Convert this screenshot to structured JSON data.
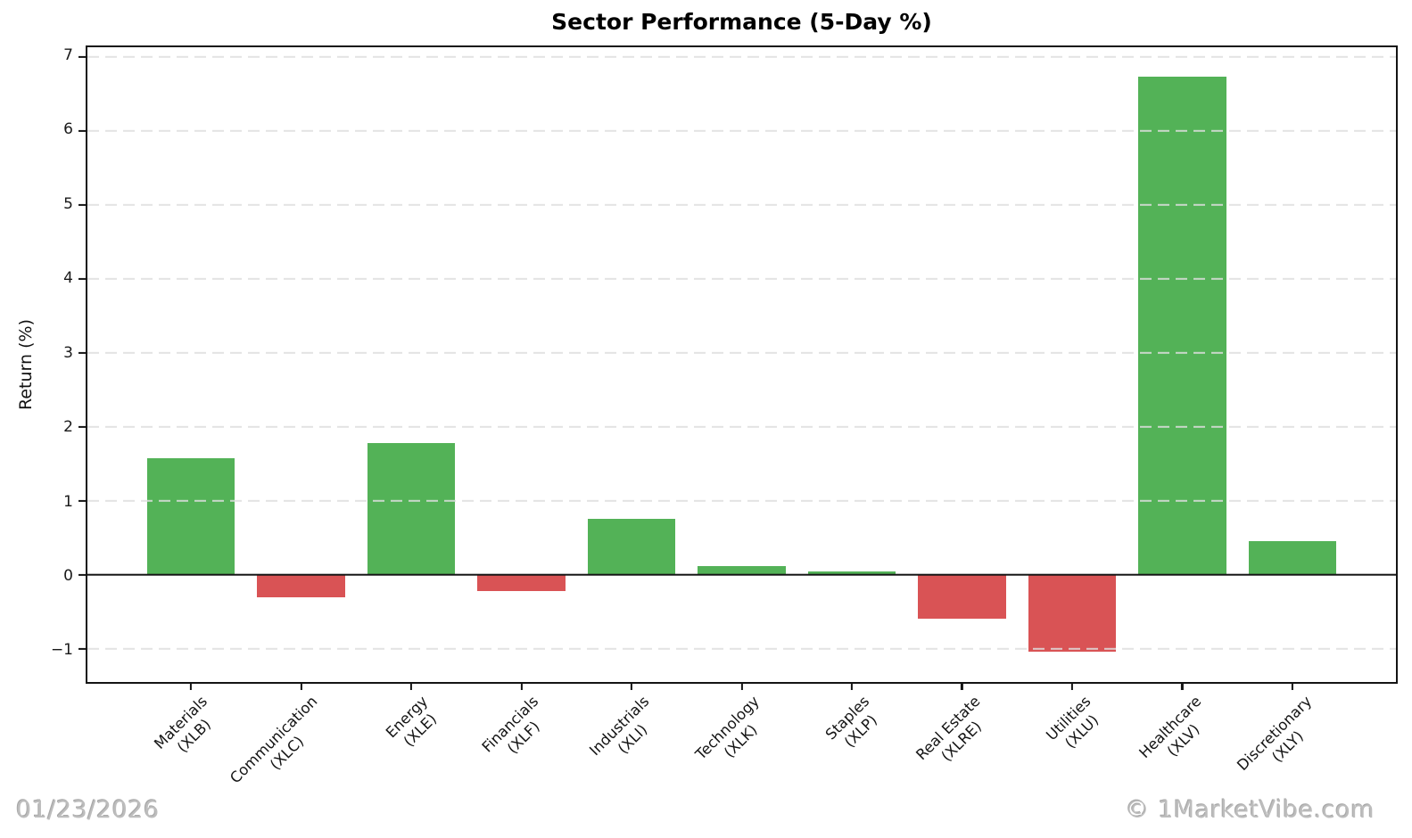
{
  "chart_data": {
    "type": "bar",
    "title": "Sector Performance (5-Day %)",
    "ylabel": "Return (%)",
    "xlabel": "",
    "categories": [
      "Materials\n(XLB)",
      "Communication\n(XLC)",
      "Energy\n(XLE)",
      "Financials\n(XLF)",
      "Industrials\n(XLI)",
      "Technology\n(XLK)",
      "Staples\n(XLP)",
      "Real Estate\n(XLRE)",
      "Utilities\n(XLU)",
      "Healthcare\n(XLV)",
      "Discretionary\n(XLY)"
    ],
    "values": [
      1.57,
      -0.31,
      1.78,
      -0.22,
      0.75,
      0.12,
      0.04,
      -0.59,
      -1.04,
      6.73,
      0.46
    ],
    "ylim": [
      -1.45,
      7.13
    ],
    "xlim_units": [
      -0.94,
      10.94
    ],
    "bar_width_units": 0.8,
    "yticks": [
      7,
      6,
      5,
      4,
      3,
      2,
      1,
      0,
      -1
    ],
    "ytick_labels": [
      "7",
      "6",
      "5",
      "4",
      "3",
      "2",
      "1",
      "0",
      "−1"
    ],
    "grid": "horizontal-dashed",
    "legend": "none",
    "positive_color": "#53b257",
    "negative_color": "#d95355"
  },
  "watermarks": {
    "date": "01/23/2026",
    "brand": "© 1MarketVibe.com"
  },
  "colors": {
    "axis": "#141414",
    "grid": "#dedede",
    "watermark": "#bdbdbd",
    "background": "#ffffff"
  }
}
